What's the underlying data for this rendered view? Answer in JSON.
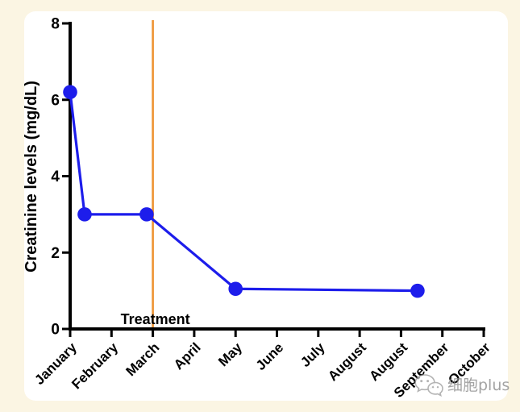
{
  "page": {
    "background_color": "#FBF5E3",
    "card_color": "#FFFFFF"
  },
  "watermark": {
    "icon": "wechat-icon",
    "text": "细胞plus",
    "color": "#8C8C8C"
  },
  "chart_data": {
    "type": "line",
    "title": "",
    "xlabel": "",
    "ylabel": "Creatinine levels (mg/dL)",
    "categories": [
      "January",
      "February",
      "March",
      "April",
      "May",
      "June",
      "July",
      "August",
      "August",
      "September",
      "October"
    ],
    "ylim": [
      0,
      8
    ],
    "yticks": [
      0,
      2,
      4,
      6,
      8
    ],
    "grid": false,
    "legend": null,
    "series": [
      {
        "name": "Creatinine",
        "color": "#1D1DEB",
        "marker": "circle",
        "points": [
          {
            "x_index": 0.0,
            "value": 6.2
          },
          {
            "x_index": 0.35,
            "value": 3.0
          },
          {
            "x_index": 1.85,
            "value": 3.0
          },
          {
            "x_index": 4.0,
            "value": 1.05
          },
          {
            "x_index": 8.4,
            "value": 1.0
          }
        ]
      }
    ],
    "annotations": [
      {
        "type": "vline",
        "x_index": 2.0,
        "label": "Treatment",
        "color": "#EE9433"
      }
    ],
    "axis_color": "#000000"
  }
}
